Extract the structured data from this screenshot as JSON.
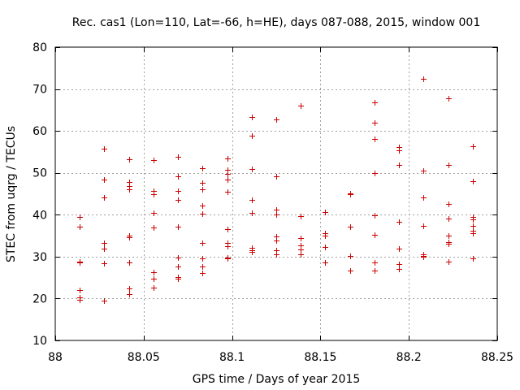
{
  "chart_data": {
    "type": "scatter",
    "title": "Rec. cas1 (Lon=110, Lat=-66, h=HE), days 087-088, 2015, window 001",
    "xlabel": "GPS time / Days of year 2015",
    "ylabel": "STEC from uqrg / TECUs",
    "xlim": [
      88,
      88.25
    ],
    "ylim": [
      10,
      80
    ],
    "xticks": [
      88,
      88.05,
      88.1,
      88.15,
      88.2,
      88.25
    ],
    "xtick_labels": [
      "88",
      "88.05",
      "88.1",
      "88.15",
      "88.2",
      "88.25"
    ],
    "yticks": [
      10,
      20,
      30,
      40,
      50,
      60,
      70,
      80
    ],
    "ytick_labels": [
      "10",
      "20",
      "30",
      "40",
      "50",
      "60",
      "70",
      "80"
    ],
    "grid": true,
    "marker": "+",
    "color": "#cc0000",
    "points": [
      {
        "x": 88.0139,
        "y": 39.5
      },
      {
        "x": 88.0139,
        "y": 37.2
      },
      {
        "x": 88.0139,
        "y": 28.8
      },
      {
        "x": 88.0139,
        "y": 28.6
      },
      {
        "x": 88.0139,
        "y": 22.1
      },
      {
        "x": 88.0139,
        "y": 20.3
      },
      {
        "x": 88.0139,
        "y": 19.6
      },
      {
        "x": 88.0278,
        "y": 55.8
      },
      {
        "x": 88.0278,
        "y": 48.3
      },
      {
        "x": 88.0278,
        "y": 44.2
      },
      {
        "x": 88.0278,
        "y": 33.2
      },
      {
        "x": 88.0278,
        "y": 32.0
      },
      {
        "x": 88.0278,
        "y": 28.5
      },
      {
        "x": 88.0278,
        "y": 19.5
      },
      {
        "x": 88.0417,
        "y": 53.3
      },
      {
        "x": 88.0417,
        "y": 47.8
      },
      {
        "x": 88.0417,
        "y": 46.8
      },
      {
        "x": 88.0417,
        "y": 46.0
      },
      {
        "x": 88.0417,
        "y": 35.0
      },
      {
        "x": 88.0417,
        "y": 34.7
      },
      {
        "x": 88.0417,
        "y": 28.7
      },
      {
        "x": 88.0417,
        "y": 22.5
      },
      {
        "x": 88.0417,
        "y": 21.0
      },
      {
        "x": 88.0556,
        "y": 53.1
      },
      {
        "x": 88.0556,
        "y": 45.6
      },
      {
        "x": 88.0556,
        "y": 44.9
      },
      {
        "x": 88.0556,
        "y": 40.5
      },
      {
        "x": 88.0556,
        "y": 36.9
      },
      {
        "x": 88.0556,
        "y": 26.3
      },
      {
        "x": 88.0556,
        "y": 24.7
      },
      {
        "x": 88.0556,
        "y": 22.7
      },
      {
        "x": 88.0694,
        "y": 53.9
      },
      {
        "x": 88.0694,
        "y": 49.2
      },
      {
        "x": 88.0694,
        "y": 45.6
      },
      {
        "x": 88.0694,
        "y": 43.6
      },
      {
        "x": 88.0694,
        "y": 37.1
      },
      {
        "x": 88.0694,
        "y": 29.8
      },
      {
        "x": 88.0694,
        "y": 27.7
      },
      {
        "x": 88.0694,
        "y": 25.1
      },
      {
        "x": 88.0694,
        "y": 24.8
      },
      {
        "x": 88.0833,
        "y": 51.1
      },
      {
        "x": 88.0833,
        "y": 47.6
      },
      {
        "x": 88.0833,
        "y": 46.1
      },
      {
        "x": 88.0833,
        "y": 42.1
      },
      {
        "x": 88.0833,
        "y": 40.3
      },
      {
        "x": 88.0833,
        "y": 33.2
      },
      {
        "x": 88.0833,
        "y": 29.5
      },
      {
        "x": 88.0833,
        "y": 27.6
      },
      {
        "x": 88.0833,
        "y": 26.0
      },
      {
        "x": 88.0972,
        "y": 53.5
      },
      {
        "x": 88.0972,
        "y": 50.8
      },
      {
        "x": 88.0972,
        "y": 49.8
      },
      {
        "x": 88.0972,
        "y": 48.3
      },
      {
        "x": 88.0972,
        "y": 45.4
      },
      {
        "x": 88.0972,
        "y": 36.5
      },
      {
        "x": 88.0972,
        "y": 33.2
      },
      {
        "x": 88.0972,
        "y": 32.4
      },
      {
        "x": 88.0972,
        "y": 29.8
      },
      {
        "x": 88.0972,
        "y": 29.5
      },
      {
        "x": 88.1111,
        "y": 63.3
      },
      {
        "x": 88.1111,
        "y": 58.8
      },
      {
        "x": 88.1111,
        "y": 51.0
      },
      {
        "x": 88.1111,
        "y": 43.5
      },
      {
        "x": 88.1111,
        "y": 40.5
      },
      {
        "x": 88.1111,
        "y": 32.2
      },
      {
        "x": 88.1111,
        "y": 31.6
      },
      {
        "x": 88.1111,
        "y": 31.2
      },
      {
        "x": 88.125,
        "y": 62.8
      },
      {
        "x": 88.125,
        "y": 49.2
      },
      {
        "x": 88.125,
        "y": 41.2
      },
      {
        "x": 88.125,
        "y": 40.1
      },
      {
        "x": 88.125,
        "y": 34.8
      },
      {
        "x": 88.125,
        "y": 33.8
      },
      {
        "x": 88.125,
        "y": 31.6
      },
      {
        "x": 88.125,
        "y": 30.6
      },
      {
        "x": 88.1389,
        "y": 66.0
      },
      {
        "x": 88.1389,
        "y": 39.7
      },
      {
        "x": 88.1389,
        "y": 34.5
      },
      {
        "x": 88.1389,
        "y": 32.7
      },
      {
        "x": 88.1389,
        "y": 31.8
      },
      {
        "x": 88.1389,
        "y": 30.5
      },
      {
        "x": 88.1528,
        "y": 40.7
      },
      {
        "x": 88.1528,
        "y": 35.6
      },
      {
        "x": 88.1528,
        "y": 35.1
      },
      {
        "x": 88.1528,
        "y": 32.3
      },
      {
        "x": 88.1528,
        "y": 28.6
      },
      {
        "x": 88.1667,
        "y": 45.1
      },
      {
        "x": 88.1667,
        "y": 44.9
      },
      {
        "x": 88.1667,
        "y": 37.2
      },
      {
        "x": 88.1667,
        "y": 30.1
      },
      {
        "x": 88.1667,
        "y": 26.6
      },
      {
        "x": 88.1806,
        "y": 66.8
      },
      {
        "x": 88.1806,
        "y": 62.0
      },
      {
        "x": 88.1806,
        "y": 58.1
      },
      {
        "x": 88.1806,
        "y": 50.0
      },
      {
        "x": 88.1806,
        "y": 39.8
      },
      {
        "x": 88.1806,
        "y": 35.3
      },
      {
        "x": 88.1806,
        "y": 28.7
      },
      {
        "x": 88.1806,
        "y": 26.6
      },
      {
        "x": 88.1944,
        "y": 56.1
      },
      {
        "x": 88.1944,
        "y": 55.3
      },
      {
        "x": 88.1944,
        "y": 51.9
      },
      {
        "x": 88.1944,
        "y": 38.4
      },
      {
        "x": 88.1944,
        "y": 32.0
      },
      {
        "x": 88.1944,
        "y": 28.3
      },
      {
        "x": 88.1944,
        "y": 27.1
      },
      {
        "x": 88.2083,
        "y": 72.5
      },
      {
        "x": 88.2083,
        "y": 50.6
      },
      {
        "x": 88.2083,
        "y": 44.2
      },
      {
        "x": 88.2083,
        "y": 37.3
      },
      {
        "x": 88.2083,
        "y": 30.6
      },
      {
        "x": 88.2083,
        "y": 30.2
      },
      {
        "x": 88.2083,
        "y": 29.9
      },
      {
        "x": 88.2222,
        "y": 67.8
      },
      {
        "x": 88.2222,
        "y": 51.9
      },
      {
        "x": 88.2222,
        "y": 42.5
      },
      {
        "x": 88.2222,
        "y": 39.0
      },
      {
        "x": 88.2222,
        "y": 35.1
      },
      {
        "x": 88.2222,
        "y": 33.4
      },
      {
        "x": 88.2222,
        "y": 33.1
      },
      {
        "x": 88.2222,
        "y": 28.8
      },
      {
        "x": 88.2361,
        "y": 56.4
      },
      {
        "x": 88.2361,
        "y": 48.0
      },
      {
        "x": 88.2361,
        "y": 39.5
      },
      {
        "x": 88.2361,
        "y": 38.9
      },
      {
        "x": 88.2361,
        "y": 37.3
      },
      {
        "x": 88.2361,
        "y": 36.2
      },
      {
        "x": 88.2361,
        "y": 35.6
      },
      {
        "x": 88.2361,
        "y": 29.5
      }
    ]
  }
}
